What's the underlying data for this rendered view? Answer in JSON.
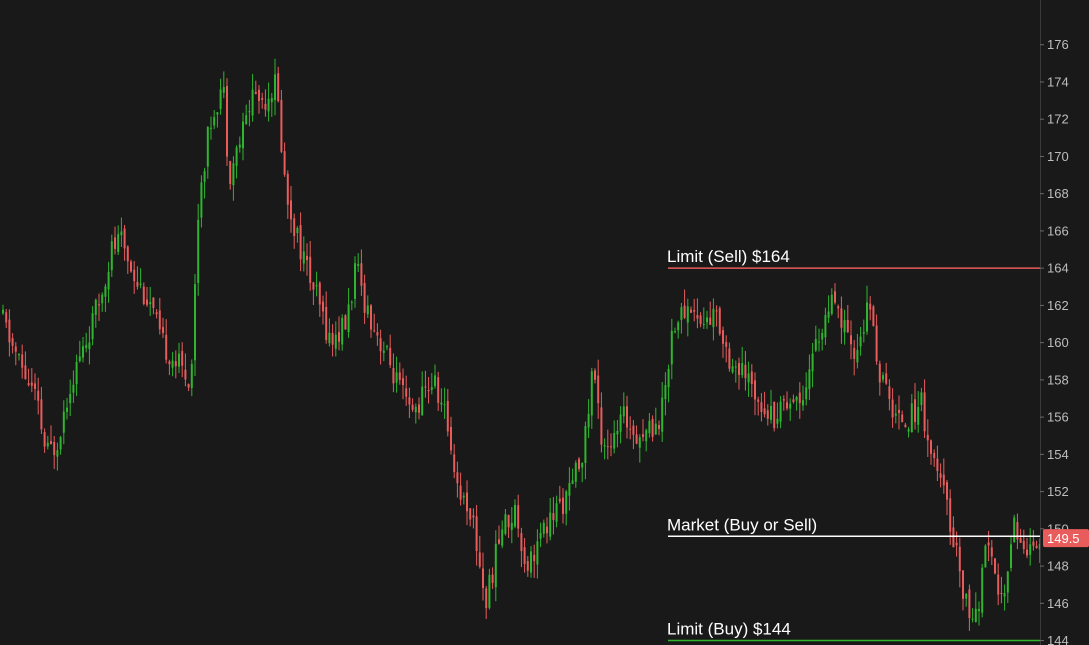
{
  "chart_data": {
    "type": "candlestick",
    "title": "",
    "xlabel": "",
    "ylabel": "",
    "ylim": [
      143,
      177
    ],
    "y_ticks": [
      "176",
      "174",
      "172",
      "170",
      "168",
      "166",
      "164",
      "162",
      "160",
      "158",
      "156",
      "154",
      "152",
      "150",
      "148",
      "146",
      "144"
    ],
    "grid": false,
    "colors": {
      "background": "#191919",
      "up": "#2fb52f",
      "down": "#e85c5c",
      "axis_text": "#bdbdbd"
    },
    "current_price": {
      "label": "149.5",
      "value": 149.5,
      "color": "#e85c5c"
    },
    "levels": [
      {
        "label": "Limit (Sell) $164",
        "value": 164,
        "color": "#e85c5c"
      },
      {
        "label": "Market (Buy or Sell)",
        "value": 149.6,
        "color": "#ffffff"
      },
      {
        "label": "Limit (Buy) $144",
        "value": 144,
        "color": "#2fb52f"
      }
    ],
    "close_path": [
      [
        0,
        161.5
      ],
      [
        10,
        160
      ],
      [
        22,
        158.5
      ],
      [
        35,
        157
      ],
      [
        45,
        154
      ],
      [
        55,
        154.5
      ],
      [
        70,
        158
      ],
      [
        85,
        160
      ],
      [
        100,
        162.5
      ],
      [
        110,
        165
      ],
      [
        120,
        165.5
      ],
      [
        135,
        163.5
      ],
      [
        150,
        162
      ],
      [
        160,
        160
      ],
      [
        175,
        159
      ],
      [
        190,
        158
      ],
      [
        198,
        168
      ],
      [
        210,
        172
      ],
      [
        222,
        174
      ],
      [
        228,
        169
      ],
      [
        240,
        171
      ],
      [
        252,
        173.5
      ],
      [
        262,
        173
      ],
      [
        275,
        174
      ],
      [
        285,
        168
      ],
      [
        300,
        165
      ],
      [
        318,
        162
      ],
      [
        330,
        160
      ],
      [
        345,
        161
      ],
      [
        355,
        164
      ],
      [
        365,
        162
      ],
      [
        380,
        160
      ],
      [
        395,
        158
      ],
      [
        410,
        156
      ],
      [
        420,
        157
      ],
      [
        432,
        158
      ],
      [
        445,
        156
      ],
      [
        458,
        152
      ],
      [
        470,
        151
      ],
      [
        485,
        146
      ],
      [
        500,
        150
      ],
      [
        515,
        151
      ],
      [
        525,
        148
      ],
      [
        540,
        149.5
      ],
      [
        555,
        151
      ],
      [
        570,
        152
      ],
      [
        585,
        155
      ],
      [
        592,
        159
      ],
      [
        600,
        155
      ],
      [
        612,
        154.5
      ],
      [
        622,
        156
      ],
      [
        640,
        155
      ],
      [
        660,
        156
      ],
      [
        672,
        161
      ],
      [
        690,
        162
      ],
      [
        700,
        161
      ],
      [
        715,
        161.5
      ],
      [
        730,
        159
      ],
      [
        745,
        158
      ],
      [
        760,
        157
      ],
      [
        772,
        156
      ],
      [
        785,
        157
      ],
      [
        800,
        157
      ],
      [
        815,
        160
      ],
      [
        830,
        162
      ],
      [
        842,
        161
      ],
      [
        852,
        159
      ],
      [
        868,
        162
      ],
      [
        880,
        158
      ],
      [
        895,
        156
      ],
      [
        910,
        156
      ],
      [
        920,
        157
      ],
      [
        930,
        154
      ],
      [
        942,
        152
      ],
      [
        955,
        149
      ],
      [
        965,
        146
      ],
      [
        975,
        145
      ],
      [
        985,
        149
      ],
      [
        995,
        147
      ],
      [
        1005,
        146
      ],
      [
        1012,
        151
      ],
      [
        1020,
        149
      ],
      [
        1035,
        149.5
      ],
      [
        1040,
        149.5
      ]
    ]
  }
}
